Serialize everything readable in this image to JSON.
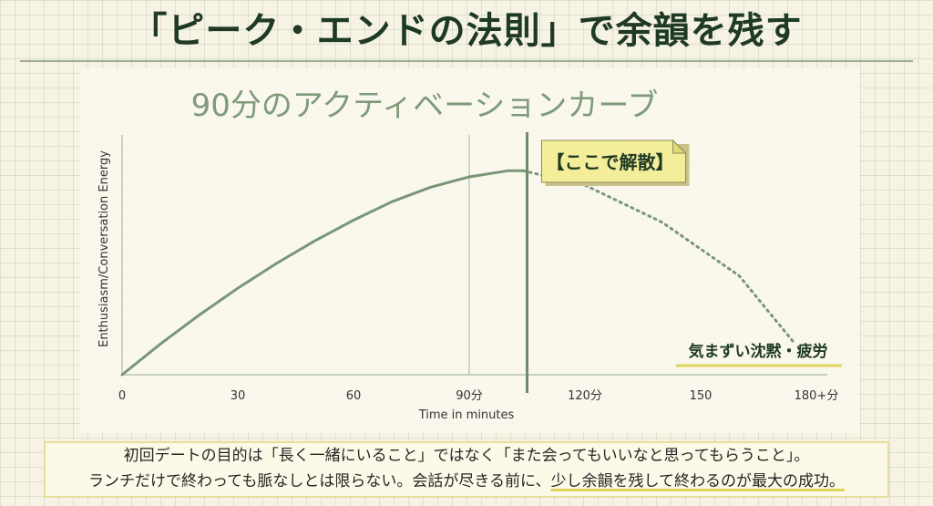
{
  "page": {
    "title": "「ピーク・エンドの法則」で余韻を残す"
  },
  "chart_data": {
    "type": "line",
    "title": "90分のアクティベーションカーブ",
    "xlabel": "Time in minutes",
    "ylabel": "Enthusiasm/Conversation Energy",
    "xlim": [
      0,
      180
    ],
    "x_ticks": [
      0,
      30,
      60,
      90,
      120,
      150,
      180
    ],
    "x_tick_labels": [
      "0",
      "30",
      "60",
      "90分",
      "120分",
      "150",
      "180+分"
    ],
    "grid": "vertical line at 90",
    "series": [
      {
        "style": "solid",
        "x": [
          0,
          10,
          20,
          30,
          40,
          50,
          60,
          70,
          80,
          90,
          100,
          104
        ],
        "y": [
          0,
          15,
          29,
          42,
          54,
          65,
          75,
          84,
          91,
          96,
          99,
          99
        ]
      },
      {
        "style": "dotted",
        "x": [
          104,
          120,
          140,
          160,
          174
        ],
        "y": [
          99,
          92,
          74,
          48,
          16
        ]
      }
    ],
    "marker_line_x": 105,
    "annotations": [
      {
        "text": "【ここで解散】",
        "at_x": 105
      },
      {
        "text": "気まずい沈黙・疲労",
        "at_x": 172
      }
    ]
  },
  "note": {
    "line1": "初回デートの目的は「長く一緒にいること」ではなく「また会ってもいいなと思ってもらうこと」。",
    "line2_plain": "ランチだけで終わっても脈なしとは限らない。会話が尽きる前に、",
    "line2_highlight": "少し余韻を残して終わるのが最大の成功。"
  },
  "colors": {
    "curve": "#7b9677",
    "marker": "#6f8a6c",
    "title": "#1f3a24",
    "chart_title": "#7e9a7b",
    "callout_bg": "#f4ee9a",
    "highlight_underline": "#e0d45a"
  }
}
